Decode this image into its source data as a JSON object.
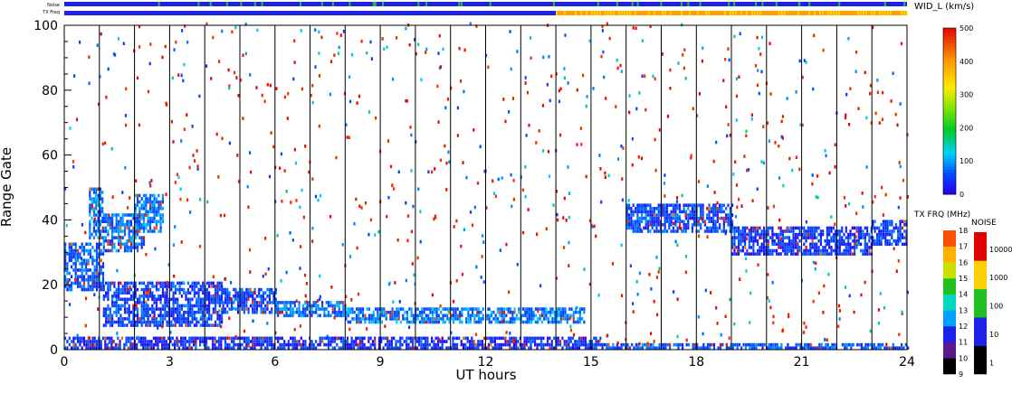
{
  "chart_data": {
    "type": "heatmap",
    "title": "",
    "xlabel": "UT hours",
    "ylabel": "Range Gate",
    "xlim": [
      0,
      24
    ],
    "ylim": [
      0,
      100
    ],
    "x_ticks": [
      "0",
      "3",
      "6",
      "9",
      "12",
      "15",
      "18",
      "21",
      "24"
    ],
    "y_ticks": [
      "0",
      "20",
      "40",
      "60",
      "80",
      "100"
    ],
    "grid": false,
    "top_strips": {
      "noise_label": "Noise",
      "freq_label": "TX Freq",
      "freq_change_hour": 14.0
    },
    "colorbar_width": {
      "title": "WID_L (km/s)",
      "ticks": [
        "0",
        "100",
        "200",
        "300",
        "400",
        "500"
      ],
      "range": [
        0,
        500
      ]
    },
    "colorbar_freq": {
      "title": "TX FRQ (MHz)",
      "ticks": [
        "9",
        "10",
        "11",
        "12",
        "13",
        "14",
        "15",
        "16",
        "17",
        "18"
      ]
    },
    "colorbar_noise": {
      "title": "NOISE",
      "ticks": [
        "1",
        "10",
        "100",
        "1000",
        "10000"
      ]
    },
    "scan_boundaries_hours": [
      1,
      2,
      3,
      4,
      5,
      6,
      7,
      8,
      9,
      10,
      11,
      12,
      13,
      14,
      15,
      16,
      17,
      18,
      19,
      20,
      21,
      22,
      23
    ],
    "echo_bands": [
      {
        "t0": 0.0,
        "t1": 1.1,
        "g0": 18,
        "g1": 33,
        "wid": 60
      },
      {
        "t0": 0.7,
        "t1": 1.1,
        "g0": 34,
        "g1": 50,
        "wid": 80
      },
      {
        "t0": 1.1,
        "t1": 2.3,
        "g0": 30,
        "g1": 42,
        "wid": 70
      },
      {
        "t0": 2.0,
        "t1": 2.8,
        "g0": 36,
        "g1": 48,
        "wid": 80
      },
      {
        "t0": 1.1,
        "t1": 4.5,
        "g0": 7,
        "g1": 21,
        "wid": 45
      },
      {
        "t0": 4.5,
        "t1": 6.0,
        "g0": 11,
        "g1": 19,
        "wid": 50
      },
      {
        "t0": 6.0,
        "t1": 8.0,
        "g0": 10,
        "g1": 15,
        "wid": 70
      },
      {
        "t0": 8.0,
        "t1": 14.8,
        "g0": 8,
        "g1": 13,
        "wid": 80
      },
      {
        "t0": 0.0,
        "t1": 15.3,
        "g0": 0,
        "g1": 4,
        "wid": 35
      },
      {
        "t0": 15.3,
        "t1": 24.0,
        "g0": 0,
        "g1": 2,
        "wid": 60
      },
      {
        "t0": 16.0,
        "t1": 19.0,
        "g0": 36,
        "g1": 45,
        "wid": 50
      },
      {
        "t0": 19.0,
        "t1": 23.0,
        "g0": 29,
        "g1": 38,
        "wid": 40
      },
      {
        "t0": 23.0,
        "t1": 24.0,
        "g0": 32,
        "g1": 40,
        "wid": 45
      }
    ]
  }
}
